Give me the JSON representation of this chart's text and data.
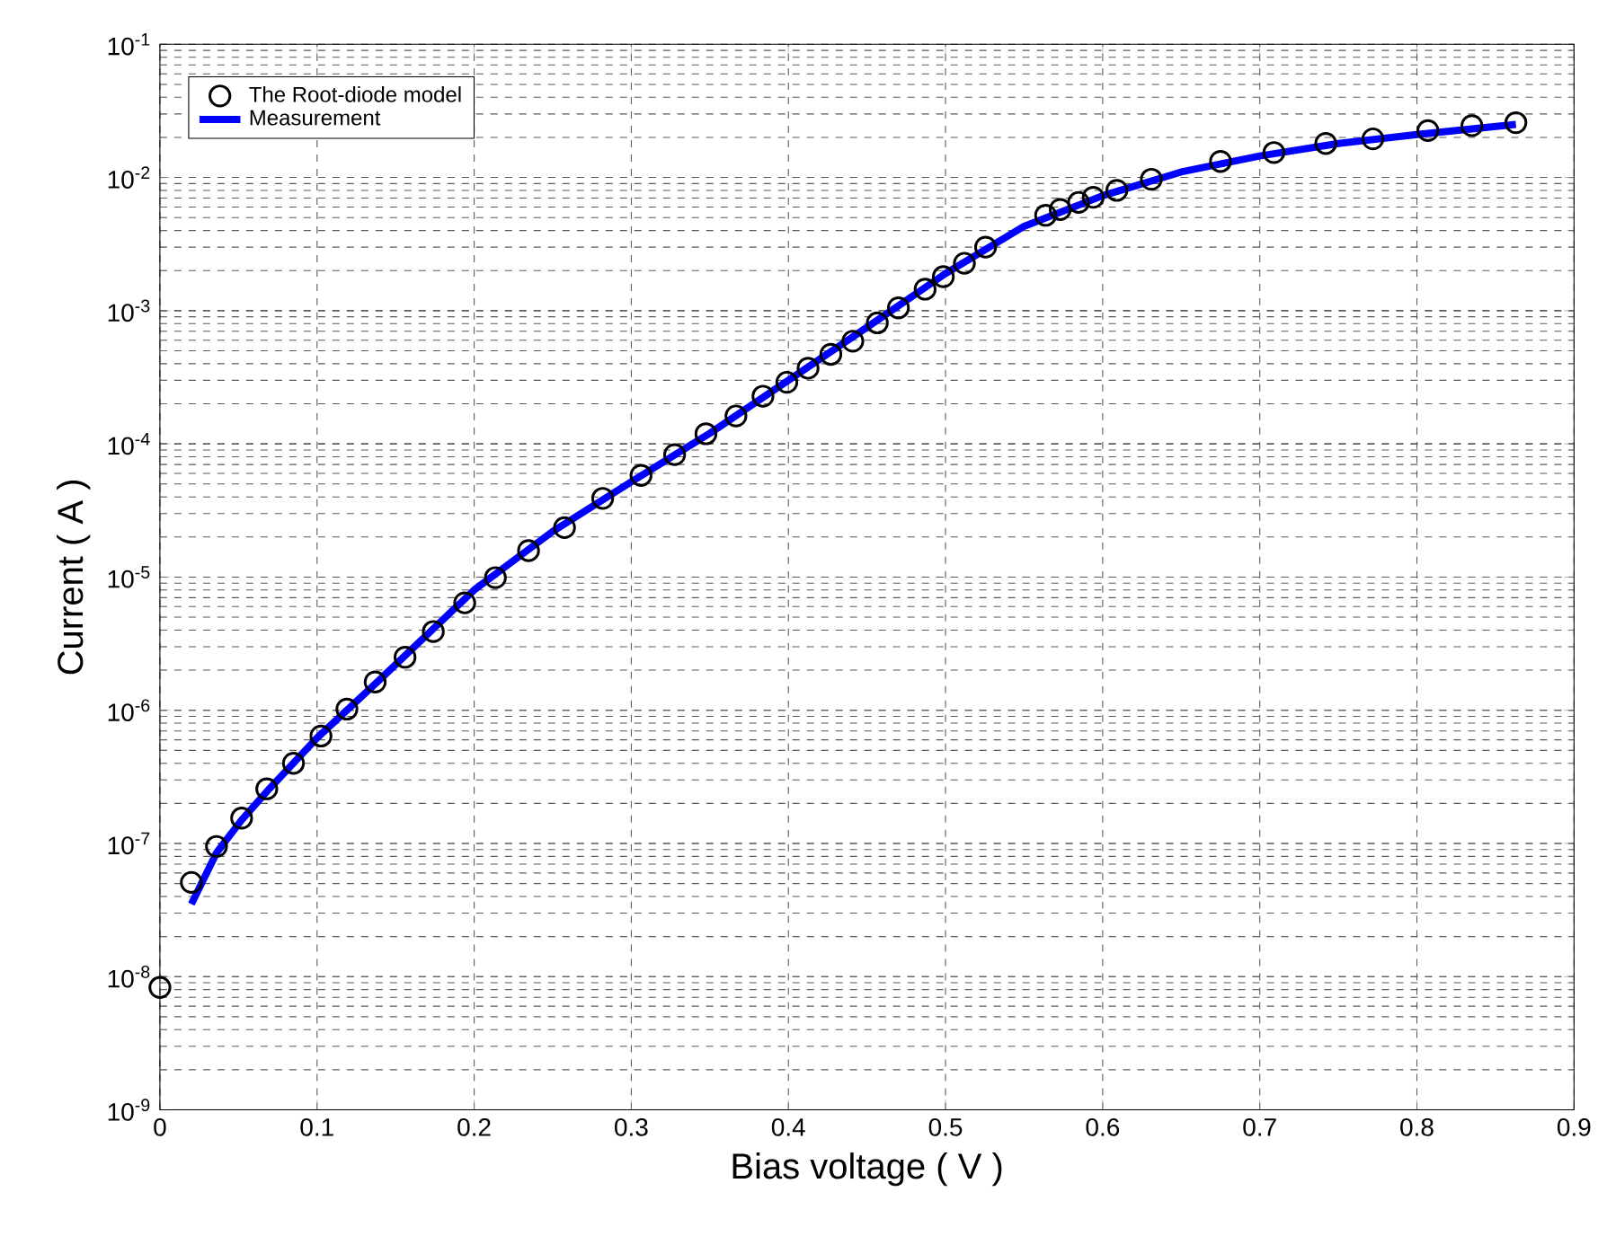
{
  "chart_data": {
    "type": "line",
    "xlabel": "Bias voltage ( V )",
    "ylabel": "Current ( A )",
    "log": "y",
    "grid": true,
    "legend": "top left",
    "xlim": [
      0,
      0.9
    ],
    "xticks": [
      0,
      0.1,
      0.2,
      0.3,
      0.4,
      0.5,
      0.6,
      0.7,
      0.8,
      0.9
    ],
    "ylim": [
      1e-09,
      0.1
    ],
    "yticks": [
      {
        "value": 1e-09,
        "label": "10$^{-9}$"
      },
      {
        "value": 1e-08,
        "label": "10$^{-8}$"
      },
      {
        "value": 1e-07,
        "label": "10$^{-7}$"
      },
      {
        "value": 1e-06,
        "label": "10$^{-6}$"
      },
      {
        "value": 1e-05,
        "label": "10$^{-5}$"
      },
      {
        "value": 0.0001,
        "label": "10$^{-4}$"
      },
      {
        "value": 0.001,
        "label": "10$^{-3}$"
      },
      {
        "value": 0.01,
        "label": "10$^{-2}$"
      },
      {
        "value": 0.1,
        "label": "10$^{-1}$"
      }
    ],
    "series": [
      {
        "name": "The Root-diode model",
        "type": "scatter",
        "marker": "circle",
        "color": "#000000",
        "x": [
          0,
          0.02,
          0.036,
          0.052,
          0.068,
          0.085,
          0.1025,
          0.119,
          0.137,
          0.156,
          0.174,
          0.194,
          0.2135,
          0.2346,
          0.2575,
          0.2818,
          0.3062,
          0.3276,
          0.3475,
          0.3666,
          0.3838,
          0.399,
          0.4125,
          0.427,
          0.441,
          0.4566,
          0.47,
          0.487,
          0.4986,
          0.512,
          0.5255,
          0.5637,
          0.573,
          0.5847,
          0.594,
          0.609,
          0.631,
          0.675,
          0.709,
          0.742,
          0.772,
          0.807,
          0.835,
          0.863
        ],
        "values": [
          8.3e-09,
          5.1e-08,
          9.5e-08,
          1.55e-07,
          2.57e-07,
          4e-07,
          6.4e-07,
          1.02e-06,
          1.63e-06,
          2.5e-06,
          3.9e-06,
          6.4e-06,
          9.9e-06,
          1.58e-05,
          2.35e-05,
          3.9e-05,
          5.8e-05,
          8.3e-05,
          0.000119,
          0.000162,
          0.000228,
          0.00029,
          0.00037,
          0.00047,
          0.00059,
          0.00081,
          0.00105,
          0.00145,
          0.0018,
          0.00227,
          0.003,
          0.0052,
          0.00575,
          0.0065,
          0.0071,
          0.008,
          0.0097,
          0.0132,
          0.0154,
          0.018,
          0.0195,
          0.0225,
          0.0245,
          0.0258
        ]
      },
      {
        "name": "Measurement",
        "line_style": "solid",
        "color": "#0000ff",
        "x": [
          0.02,
          0.036,
          0.052,
          0.07,
          0.1,
          0.14,
          0.2,
          0.25,
          0.3,
          0.35,
          0.4,
          0.45,
          0.5,
          0.55,
          0.6,
          0.65,
          0.7,
          0.75,
          0.8,
          0.863
        ],
        "values": [
          3.5e-08,
          8.5e-08,
          1.5e-07,
          2.6e-07,
          6.2e-07,
          1.7e-06,
          8e-06,
          2.2e-05,
          5.2e-05,
          0.00012,
          0.0003,
          0.00075,
          0.0019,
          0.0043,
          0.0073,
          0.011,
          0.0145,
          0.018,
          0.021,
          0.025
        ]
      }
    ]
  }
}
